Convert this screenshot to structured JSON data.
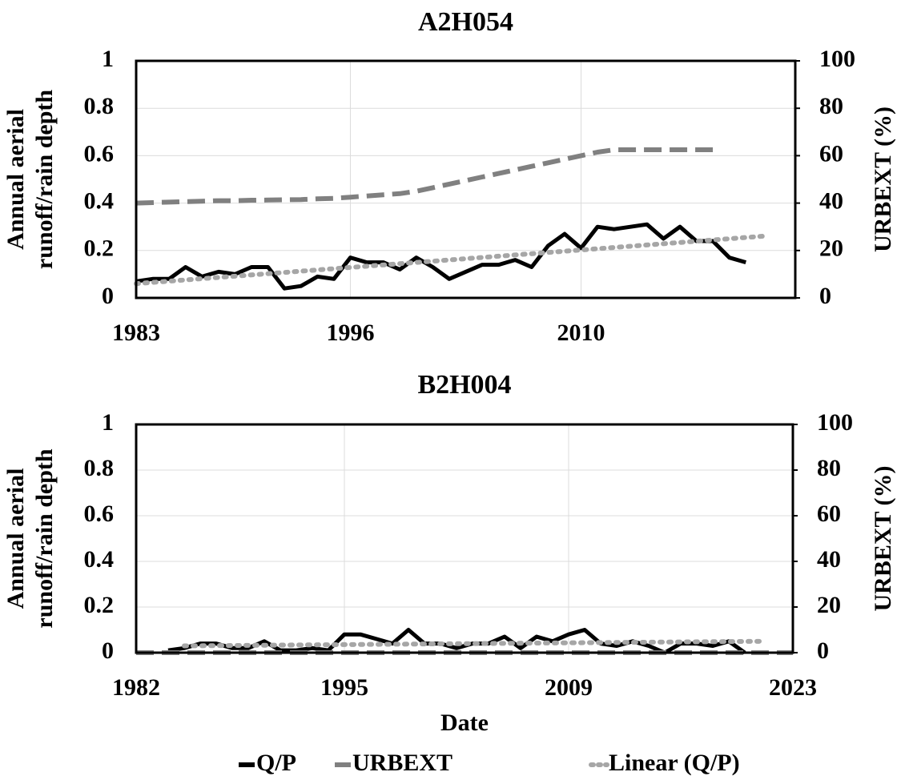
{
  "chart_data": [
    {
      "type": "line",
      "title": "A2H054",
      "ylabel": [
        "Annual aerial",
        "runoff/rain depth"
      ],
      "y2label": "URBEXT (%)",
      "xlim": [
        1983,
        2023
      ],
      "xticks": [
        1983,
        1996,
        2010
      ],
      "ylim": [
        0,
        1
      ],
      "yticks": [
        0,
        0.2,
        0.4,
        0.6,
        0.8,
        1
      ],
      "y2lim": [
        0,
        100
      ],
      "y2ticks": [
        0,
        20,
        40,
        60,
        80,
        100
      ],
      "grid": true,
      "legend": "bottom",
      "series": [
        {
          "name": "Q/P",
          "color": "#000000",
          "linestyle": "solid",
          "x": [
            1983,
            1984,
            1985,
            1986,
            1987,
            1988,
            1989,
            1990,
            1991,
            1992,
            1993,
            1994,
            1995,
            1996,
            1997,
            1998,
            1999,
            2000,
            2001,
            2002,
            2003,
            2004,
            2005,
            2006,
            2007,
            2008,
            2009,
            2010,
            2011,
            2012,
            2013,
            2014,
            2015,
            2016,
            2017,
            2018,
            2019,
            2020
          ],
          "values": [
            0.07,
            0.08,
            0.08,
            0.13,
            0.09,
            0.11,
            0.1,
            0.13,
            0.13,
            0.04,
            0.05,
            0.09,
            0.08,
            0.17,
            0.15,
            0.15,
            0.12,
            0.17,
            0.13,
            0.08,
            0.11,
            0.14,
            0.14,
            0.16,
            0.13,
            0.22,
            0.27,
            0.21,
            0.3,
            0.29,
            0.3,
            0.31,
            0.25,
            0.3,
            0.24,
            0.24,
            0.17,
            0.15
          ]
        },
        {
          "name": "URBEXT",
          "color": "#808080",
          "linestyle": "dashed",
          "axis": "y2",
          "x": [
            1983,
            1984,
            1985,
            1986,
            1987,
            1988,
            1989,
            1990,
            1991,
            1992,
            1993,
            1994,
            1995,
            1996,
            1997,
            1998,
            1999,
            2000,
            2001,
            2002,
            2003,
            2004,
            2005,
            2006,
            2007,
            2008,
            2009,
            2010,
            2011,
            2012,
            2013,
            2014,
            2015,
            2016,
            2017,
            2018
          ],
          "values": [
            40,
            40.2,
            40.4,
            40.6,
            40.8,
            41,
            41,
            41.2,
            41.3,
            41.4,
            41.5,
            41.8,
            42,
            42.5,
            43,
            43.5,
            44,
            45,
            46.5,
            48,
            49.5,
            51,
            52.5,
            54,
            55.5,
            57,
            58.5,
            60,
            61.5,
            62.5,
            62.5,
            62.5,
            62.5,
            62.5,
            62.5,
            62.5
          ]
        },
        {
          "name": "Linear (Q/P)",
          "color": "#a6a6a6",
          "linestyle": "dotted",
          "x": [
            1983,
            2021
          ],
          "values": [
            0.06,
            0.26
          ]
        }
      ]
    },
    {
      "type": "line",
      "title": "B2H004",
      "ylabel": [
        "Annual aerial",
        "runoff/rain depth"
      ],
      "y2label": "URBEXT (%)",
      "xlabel": "Date",
      "xlim": [
        1982,
        2023
      ],
      "xticks": [
        1982,
        1995,
        2009,
        2023
      ],
      "ylim": [
        0,
        1
      ],
      "yticks": [
        0,
        0.2,
        0.4,
        0.6,
        0.8,
        1
      ],
      "y2lim": [
        0,
        100
      ],
      "y2ticks": [
        0,
        20,
        40,
        60,
        80,
        100
      ],
      "grid": true,
      "series": [
        {
          "color": "#000000",
          "linestyle": "solid",
          "x": [
            1984,
            1985,
            1986,
            1987,
            1988,
            1989,
            1990,
            1991,
            1992,
            1993,
            1994,
            1995,
            1996,
            1997,
            1998,
            1999,
            2000,
            2001,
            2002,
            2003,
            2004,
            2005,
            2006,
            2007,
            2008,
            2009,
            2010,
            2011,
            2012,
            2013,
            2014,
            2015,
            2016,
            2017,
            2018,
            2019,
            2020
          ],
          "values": [
            0.01,
            0.02,
            0.04,
            0.04,
            0.02,
            0.02,
            0.05,
            0.01,
            0.01,
            0.02,
            0.01,
            0.08,
            0.08,
            0.06,
            0.04,
            0.1,
            0.04,
            0.04,
            0.02,
            0.04,
            0.04,
            0.07,
            0.02,
            0.07,
            0.05,
            0.08,
            0.1,
            0.04,
            0.03,
            0.05,
            0.03,
            0.0,
            0.04,
            0.04,
            0.03,
            0.05,
            0.0
          ]
        },
        {
          "color": "#808080",
          "linestyle": "dashed",
          "axis": "y2",
          "x": [
            1982,
            2023
          ],
          "values": [
            0,
            0
          ]
        },
        {
          "color": "#a6a6a6",
          "linestyle": "dotted",
          "x": [
            1985,
            2021
          ],
          "values": [
            0.03,
            0.05
          ]
        }
      ]
    }
  ]
}
